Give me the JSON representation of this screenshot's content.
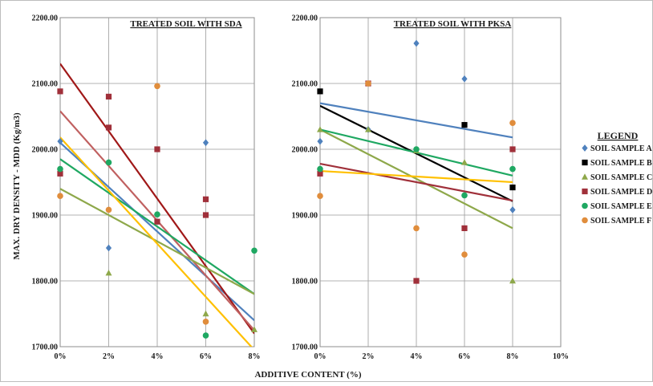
{
  "chart_data": {
    "type": "scatter",
    "xlabel": "ADDITIVE CONTENT (%)",
    "ylabel": "MAX. DRY DENSITY - MDD (Kg/m3)",
    "legend": {
      "title": "LEGEND",
      "placement": "right",
      "items": [
        {
          "name": "SOIL SAMPLE A",
          "color": "#4f81bd",
          "marker": "diamond"
        },
        {
          "name": "SOIL SAMPLE B",
          "color": "#000000",
          "marker": "square"
        },
        {
          "name": "SOIL SAMPLE C",
          "color": "#8ea84a",
          "marker": "triangle"
        },
        {
          "name": "SOIL SAMPLE D",
          "color": "#a0303a",
          "marker": "square"
        },
        {
          "name": "SOIL SAMPLE E",
          "color": "#1fa862",
          "marker": "circle"
        },
        {
          "name": "SOIL SAMPLE F",
          "color": "#e08d3c",
          "marker": "circle"
        }
      ]
    },
    "panels": [
      {
        "title": "TREATED SOIL WITH SDA",
        "ylim": [
          1700,
          2200
        ],
        "xlim": [
          0,
          8
        ],
        "x_ticks": [
          "0%",
          "2%",
          "4%",
          "6%",
          "8%"
        ],
        "y_ticks": [
          "1700.00",
          "1800.00",
          "1900.00",
          "2000.00",
          "2100.00",
          "2200.00"
        ],
        "grid": true,
        "points": [
          {
            "series": "SOIL SAMPLE A",
            "x": [
              0,
              2,
              6
            ],
            "y": [
              2012,
              1850,
              2010
            ]
          },
          {
            "series": "SOIL SAMPLE C",
            "x": [
              2,
              6,
              8
            ],
            "y": [
              1812,
              1750,
              1726
            ]
          },
          {
            "series": "SOIL SAMPLE D",
            "x": [
              0,
              0,
              2,
              2,
              4,
              4,
              6,
              6
            ],
            "y": [
              2088,
              1963,
              2080,
              2033,
              2000,
              1890,
              1924,
              1900
            ]
          },
          {
            "series": "SOIL SAMPLE E",
            "x": [
              0,
              2,
              4,
              6,
              8
            ],
            "y": [
              1970,
              1980,
              1901,
              1717,
              1846
            ]
          },
          {
            "series": "SOIL SAMPLE F",
            "x": [
              0,
              2,
              4,
              6
            ],
            "y": [
              1929,
              1908,
              2096,
              1738
            ]
          }
        ],
        "trendlines": [
          {
            "color": "#4f81bd",
            "y0": 2010,
            "y8": 1740
          },
          {
            "color": "#a01818",
            "y0": 2130,
            "y8": 1720
          },
          {
            "color": "#c06060",
            "y0": 2058,
            "y8": 1725
          },
          {
            "color": "#1fa862",
            "y0": 1985,
            "y8": 1780
          },
          {
            "color": "#8ea84a",
            "y0": 1940,
            "y8": 1780
          },
          {
            "color": "#ffc000",
            "y0": 2018,
            "y8": 1695
          }
        ]
      },
      {
        "title": "TREATED SOIL WITH PKSA",
        "ylim": [
          1700,
          2200
        ],
        "xlim": [
          0,
          10
        ],
        "x_ticks": [
          "0%",
          "2%",
          "4%",
          "6%",
          "8%",
          "10%"
        ],
        "y_ticks": [
          "1700.00",
          "1800.00",
          "1900.00",
          "2000.00",
          "2100.00",
          "2200.00"
        ],
        "grid": true,
        "points": [
          {
            "series": "SOIL SAMPLE A",
            "x": [
              0,
              2,
              4,
              6,
              8
            ],
            "y": [
              2012,
              2030,
              2161,
              2107,
              1908
            ]
          },
          {
            "series": "SOIL SAMPLE B",
            "x": [
              0,
              6,
              8
            ],
            "y": [
              2088,
              2037,
              1942
            ]
          },
          {
            "series": "SOIL SAMPLE C",
            "x": [
              0,
              2,
              4,
              6,
              8
            ],
            "y": [
              2030,
              2030,
              1998,
              1980,
              1800
            ]
          },
          {
            "series": "SOIL SAMPLE D",
            "x": [
              0,
              2,
              4,
              6,
              8
            ],
            "y": [
              1963,
              2100,
              1800,
              1880,
              2000
            ]
          },
          {
            "series": "SOIL SAMPLE E",
            "x": [
              0,
              4,
              6,
              8
            ],
            "y": [
              1970,
              2000,
              1930,
              1970
            ]
          },
          {
            "series": "SOIL SAMPLE F",
            "x": [
              0,
              2,
              4,
              6,
              8
            ],
            "y": [
              1929,
              2100,
              1880,
              1840,
              2040
            ]
          }
        ],
        "trendlines": [
          {
            "color": "#4f81bd",
            "y0": 2070,
            "y8": 2018
          },
          {
            "color": "#000000",
            "y0": 2066,
            "y8": 1921
          },
          {
            "color": "#8ea84a",
            "y0": 2030,
            "y8": 1880
          },
          {
            "color": "#a0303a",
            "y0": 1978,
            "y8": 1922
          },
          {
            "color": "#1fa862",
            "y0": 2030,
            "y8": 1960
          },
          {
            "color": "#ffc000",
            "y0": 1967,
            "y8": 1950
          }
        ]
      }
    ]
  }
}
